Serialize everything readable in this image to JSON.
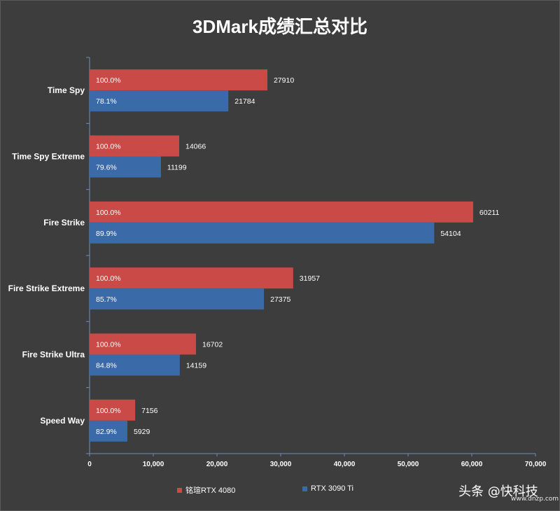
{
  "chart_data": {
    "type": "bar",
    "orientation": "horizontal",
    "title": "3DMark成绩汇总对比",
    "categories": [
      "Time Spy",
      "Time Spy Extreme",
      "Fire Strike",
      "Fire Strike Extreme",
      "Fire Strike Ultra",
      "Speed Way"
    ],
    "series": [
      {
        "name": "铭瑄RTX 4080",
        "color": "#c94a46",
        "values": [
          27910,
          14066,
          60211,
          31957,
          16702,
          7156
        ],
        "percent_labels": [
          "100.0%",
          "100.0%",
          "100.0%",
          "100.0%",
          "100.0%",
          "100.0%"
        ]
      },
      {
        "name": "RTX 3090 Ti",
        "color": "#3b6aa8",
        "values": [
          21784,
          11199,
          54104,
          27375,
          14159,
          5929
        ],
        "percent_labels": [
          "78.1%",
          "79.6%",
          "89.9%",
          "85.7%",
          "84.8%",
          "82.9%"
        ]
      }
    ],
    "xlim": [
      0,
      70000
    ],
    "xticks": [
      "0",
      "10,000",
      "20,000",
      "30,000",
      "40,000",
      "50,000",
      "60,000",
      "70,000"
    ],
    "xlabel": "",
    "ylabel": "",
    "grid": false,
    "legend_position": "bottom"
  },
  "watermark": {
    "text": "头条 @快科技",
    "sub": "www.dnzp.com"
  }
}
